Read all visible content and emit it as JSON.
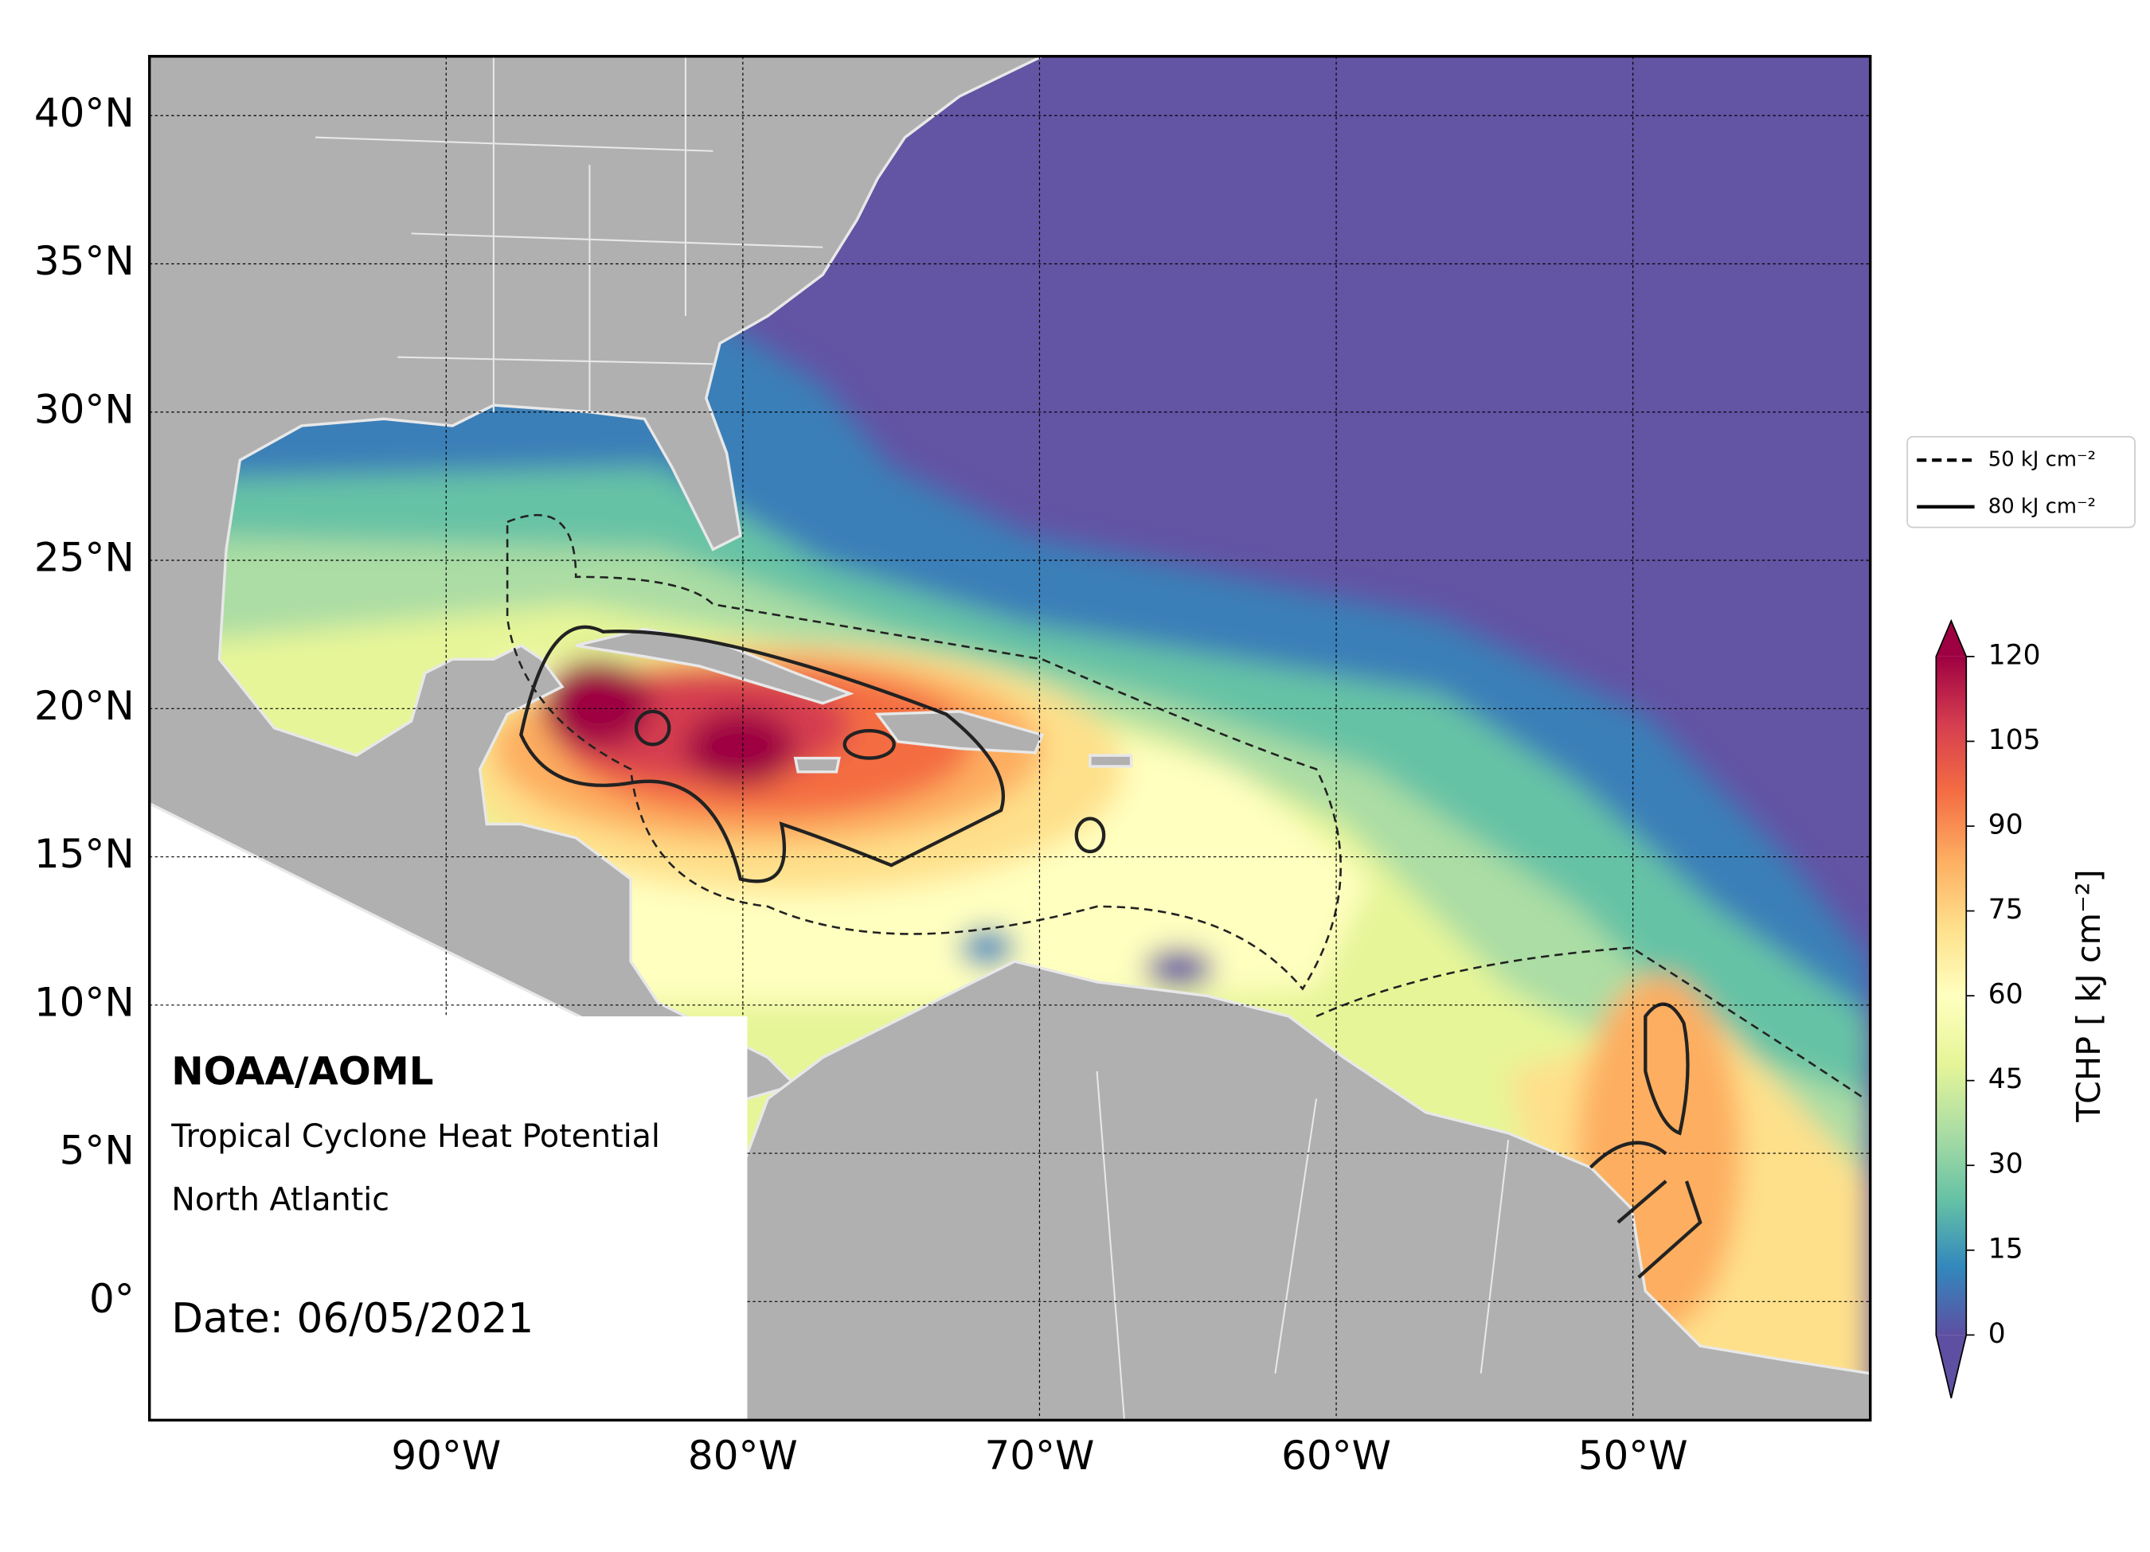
{
  "chart_data": {
    "type": "map",
    "annotations": [
      "NOAA/AOML",
      "Tropical Cyclone Heat Potential",
      "North Atlantic",
      "Date: 06/05/2021"
    ],
    "xlim": [
      -100,
      -42
    ],
    "ylim": [
      -4,
      42
    ],
    "xticks": [
      {
        "value": -90,
        "label": "90°W"
      },
      {
        "value": -80,
        "label": "80°W"
      },
      {
        "value": -70,
        "label": "70°W"
      },
      {
        "value": -60,
        "label": "60°W"
      },
      {
        "value": -50,
        "label": "50°W"
      }
    ],
    "yticks": [
      {
        "value": 0,
        "label": "0°"
      },
      {
        "value": 5,
        "label": "5°N"
      },
      {
        "value": 10,
        "label": "10°N"
      },
      {
        "value": 15,
        "label": "15°N"
      },
      {
        "value": 20,
        "label": "20°N"
      },
      {
        "value": 25,
        "label": "25°N"
      },
      {
        "value": 30,
        "label": "30°N"
      },
      {
        "value": 35,
        "label": "35°N"
      },
      {
        "value": 40,
        "label": "40°N"
      }
    ],
    "grid": true,
    "legend": {
      "position": "right",
      "entries": [
        {
          "name": "50 kJ cm⁻²",
          "style": "dashed"
        },
        {
          "name": "80 kJ cm⁻²",
          "style": "solid"
        }
      ]
    },
    "colorbar": {
      "label": "TCHP [ kJ cm⁻²]",
      "lim": [
        0,
        120
      ],
      "ticks": [
        0,
        15,
        30,
        45,
        60,
        75,
        90,
        105,
        120
      ],
      "extend": "both",
      "colors": [
        "#5e4fa2",
        "#3288bd",
        "#66c2a5",
        "#abdda4",
        "#e6f598",
        "#ffffbf",
        "#fee08b",
        "#fdae61",
        "#f46d43",
        "#d53e4f",
        "#9e0142"
      ]
    }
  }
}
